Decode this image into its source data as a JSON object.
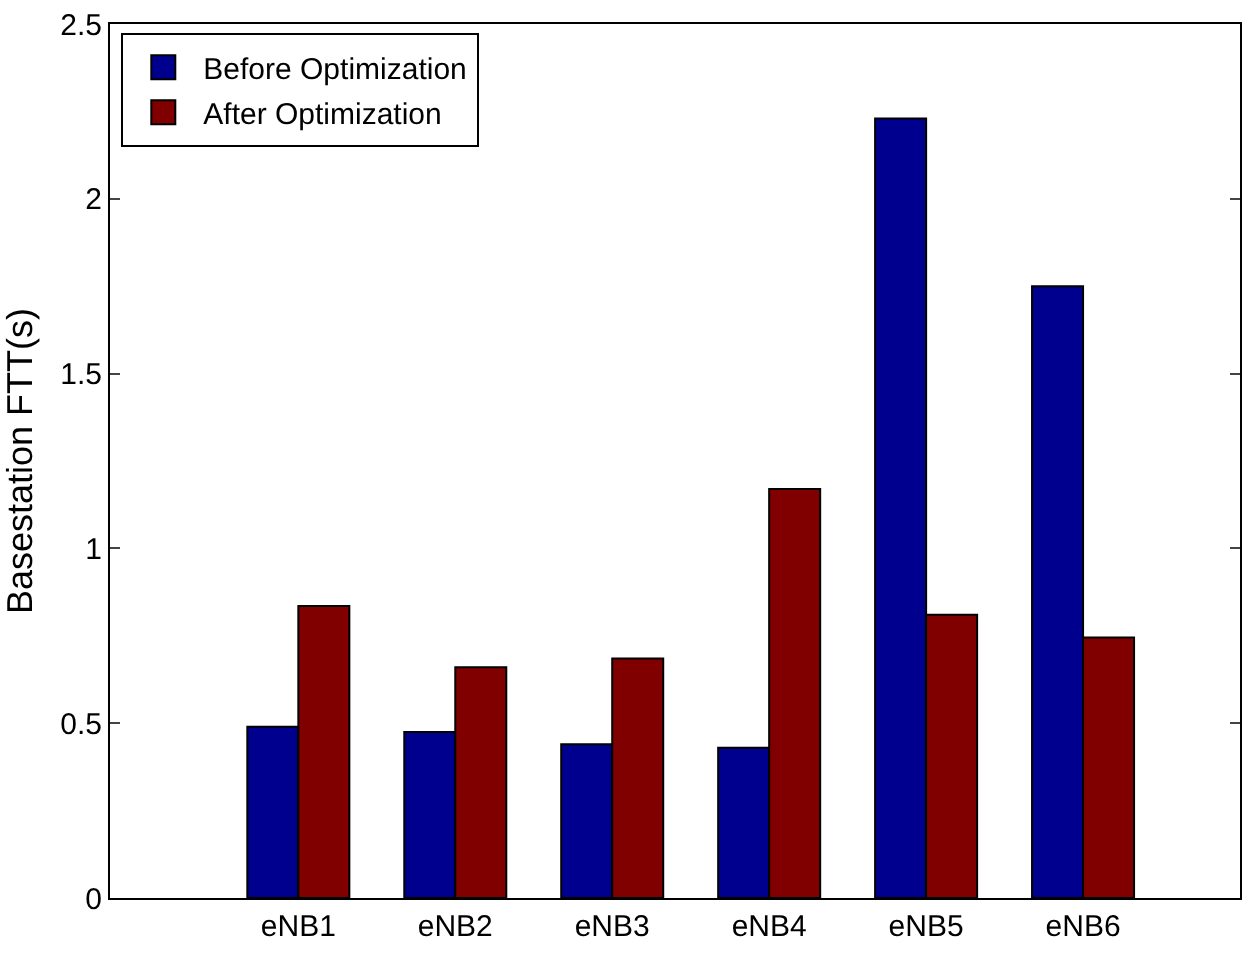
{
  "chart_data": {
    "type": "bar",
    "ylabel": "Basestation FTT(s)",
    "categories": [
      "eNB1",
      "eNB2",
      "eNB3",
      "eNB4",
      "eNB5",
      "eNB6"
    ],
    "series": [
      {
        "name": "Before Optimization",
        "color": "#00008f",
        "values": [
          0.49,
          0.475,
          0.44,
          0.43,
          2.23,
          1.75
        ]
      },
      {
        "name": "After Optimization",
        "color": "#800000",
        "values": [
          0.835,
          0.66,
          0.685,
          1.17,
          0.81,
          0.745
        ]
      }
    ],
    "ylim": [
      0,
      2.5
    ],
    "yticks": [
      0,
      0.5,
      1,
      1.5,
      2,
      2.5
    ],
    "grid": false,
    "legend": "top left"
  }
}
